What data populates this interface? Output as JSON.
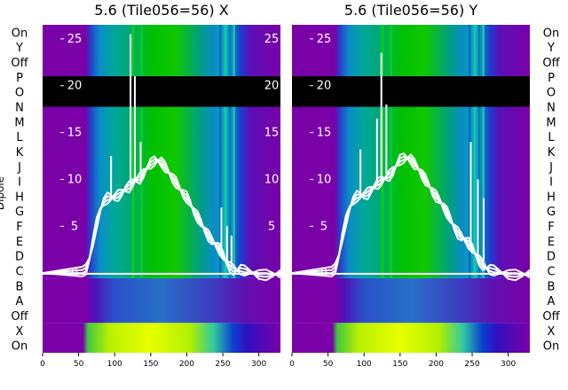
{
  "chart_data": [
    {
      "type": "heatmap",
      "title": "5.6 (Tile056=56) X",
      "ylabel": "Dipole",
      "x_ticks": [
        "0",
        "50",
        "100",
        "150",
        "200",
        "250",
        "300"
      ],
      "xlim": [
        0,
        330
      ],
      "dipole_rows_top_to_bottom": [
        "On",
        "Y",
        "Off",
        "P",
        "O",
        "N",
        "M",
        "L",
        "K",
        "J",
        "I",
        "H",
        "G",
        "F",
        "E",
        "D",
        "C",
        "B",
        "A",
        "Off",
        "X",
        "On"
      ],
      "overlay_yticks": [
        "0",
        "5",
        "10",
        "15",
        "20",
        "25"
      ],
      "overlay_ylim": [
        -1.5,
        26.5
      ],
      "masked_rows": [
        "P",
        "O"
      ],
      "line_series": {
        "x": [
          0,
          55,
          60,
          65,
          70,
          75,
          80,
          85,
          90,
          95,
          100,
          105,
          110,
          115,
          120,
          125,
          130,
          135,
          140,
          145,
          150,
          155,
          160,
          165,
          170,
          175,
          180,
          185,
          190,
          195,
          200,
          205,
          210,
          215,
          220,
          225,
          230,
          235,
          240,
          245,
          250,
          255,
          260,
          265,
          270,
          275,
          280,
          290,
          300,
          310,
          320,
          330
        ],
        "y": [
          0,
          0,
          0.2,
          1.5,
          3.5,
          5.5,
          6.8,
          7.5,
          7.8,
          8,
          8.2,
          8.5,
          8.7,
          8.9,
          9,
          9.5,
          10,
          10.3,
          10.8,
          11.2,
          11.5,
          11.8,
          12,
          12,
          11.5,
          10.8,
          10,
          9.5,
          9,
          8.6,
          8.3,
          7.5,
          6.5,
          5.8,
          5.2,
          4.7,
          4.2,
          3.6,
          3,
          2.4,
          1.8,
          1.2,
          0.8,
          0.5,
          0.3,
          0.2,
          0.1,
          0.05,
          0,
          0,
          -0.1,
          -0.2
        ]
      },
      "spikes": [
        {
          "x": 95,
          "y": 12.5
        },
        {
          "x": 122,
          "y": 25.5
        },
        {
          "x": 128,
          "y": 21
        },
        {
          "x": 136,
          "y": 14
        },
        {
          "x": 248,
          "y": 7
        },
        {
          "x": 256,
          "y": 5
        },
        {
          "x": 262,
          "y": 4
        }
      ]
    },
    {
      "type": "heatmap",
      "title": "5.6 (Tile056=56) Y",
      "ylabel": "",
      "x_ticks": [
        "0",
        "50",
        "100",
        "150",
        "200",
        "250",
        "300"
      ],
      "xlim": [
        0,
        330
      ],
      "dipole_rows_top_to_bottom": [
        "On",
        "Y",
        "Off",
        "P",
        "O",
        "N",
        "M",
        "L",
        "K",
        "J",
        "I",
        "H",
        "G",
        "F",
        "E",
        "D",
        "C",
        "B",
        "A",
        "Off",
        "X",
        "On"
      ],
      "overlay_yticks": [
        "0",
        "5",
        "10",
        "15",
        "20",
        "25"
      ],
      "overlay_ylim": [
        -1.5,
        26.5
      ],
      "masked_rows": [
        "P",
        "O"
      ],
      "line_series": {
        "x": [
          0,
          55,
          60,
          65,
          70,
          75,
          80,
          85,
          90,
          95,
          100,
          105,
          110,
          115,
          120,
          125,
          130,
          135,
          140,
          145,
          150,
          155,
          160,
          165,
          170,
          175,
          180,
          185,
          190,
          195,
          200,
          205,
          210,
          215,
          220,
          225,
          230,
          235,
          240,
          245,
          250,
          255,
          260,
          265,
          270,
          275,
          280,
          290,
          300,
          310,
          320,
          330
        ],
        "y": [
          0,
          0,
          0.3,
          1.8,
          4,
          5.8,
          7,
          7.6,
          8,
          8.2,
          8.4,
          8.7,
          9,
          9.2,
          9.4,
          9.8,
          10.2,
          10.6,
          11,
          11.5,
          11.9,
          12.1,
          12.3,
          12.3,
          11.8,
          11.2,
          10.4,
          9.8,
          9.3,
          8.8,
          8.4,
          7.8,
          7,
          6.3,
          5.6,
          5,
          4.5,
          4,
          3.5,
          3,
          2.5,
          2,
          1.5,
          1,
          0.5,
          0.2,
          0.1,
          0.05,
          0,
          0,
          -0.1,
          -0.2
        ]
      },
      "spikes": [
        {
          "x": 95,
          "y": 13.2
        },
        {
          "x": 118,
          "y": 16.5
        },
        {
          "x": 124,
          "y": 23.5
        },
        {
          "x": 131,
          "y": 18
        },
        {
          "x": 248,
          "y": 14
        },
        {
          "x": 258,
          "y": 10
        },
        {
          "x": 266,
          "y": 8
        }
      ]
    }
  ]
}
